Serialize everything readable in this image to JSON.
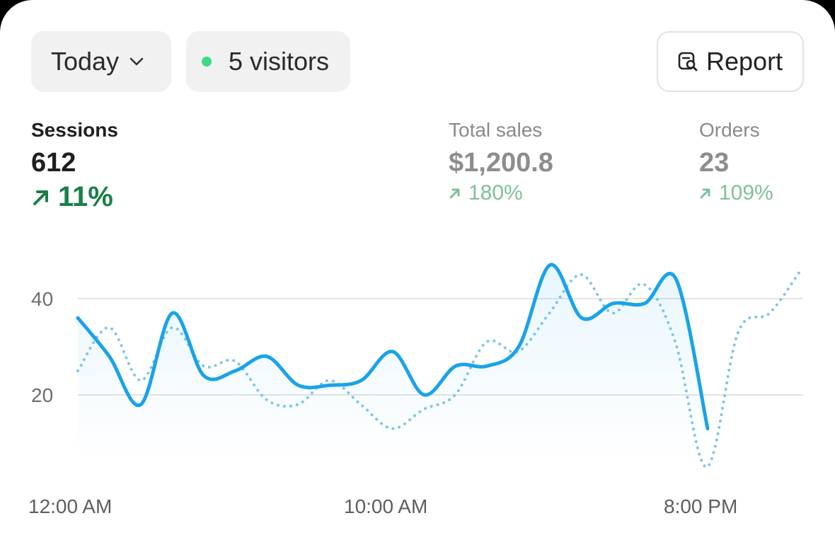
{
  "filter": {
    "label": "Today",
    "icon": "chevron-down-icon"
  },
  "live": {
    "label": "5 visitors",
    "status_color": "#3ddc84"
  },
  "report": {
    "label": "Report",
    "icon": "report-search-icon"
  },
  "metrics": {
    "sessions": {
      "label": "Sessions",
      "value": "612",
      "change": "11%",
      "trend": "up"
    },
    "sales": {
      "label": "Total sales",
      "value": "$1,200.8",
      "change": "180%",
      "trend": "up"
    },
    "orders": {
      "label": "Orders",
      "value": "23",
      "change": "109%",
      "trend": "up"
    }
  },
  "colors": {
    "primary_line": "#1aa3e8",
    "comparison_line": "#7cc7e6",
    "positive": "#1a7f48"
  },
  "chart_data": {
    "type": "line",
    "x_tick_labels": [
      "12:00 AM",
      "10:00 AM",
      "8:00 PM"
    ],
    "y_ticks": [
      20,
      40
    ],
    "ylim": [
      6,
      50
    ],
    "grid": "horizontal",
    "series": [
      {
        "role": "current",
        "style": "solid",
        "values": [
          36,
          28,
          18,
          37,
          24,
          25,
          28,
          22,
          22,
          23,
          29,
          20,
          26,
          26,
          30,
          47,
          36,
          39,
          39,
          44,
          13
        ]
      },
      {
        "role": "comparison",
        "style": "dotted",
        "values": [
          25,
          34,
          23,
          34,
          26,
          27,
          19,
          18,
          23,
          18,
          13,
          17,
          20,
          31,
          29,
          37,
          45,
          37,
          43,
          31,
          5,
          33,
          37,
          46
        ]
      }
    ]
  }
}
